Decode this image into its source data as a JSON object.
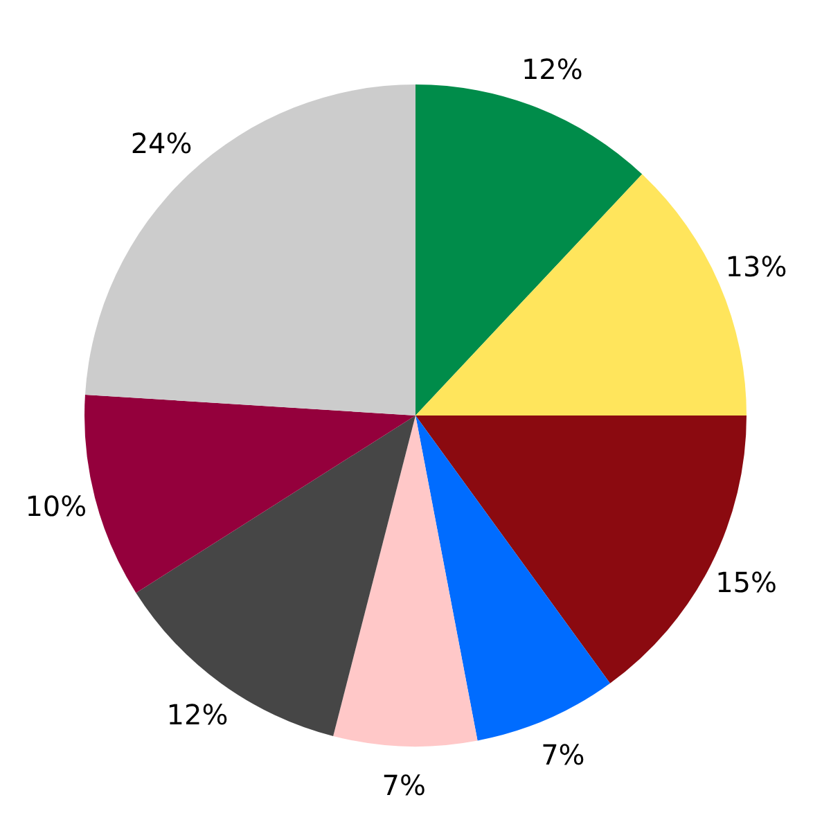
{
  "chart_data": {
    "type": "pie",
    "categories": [
      null,
      null,
      null,
      null,
      null,
      null,
      null,
      null
    ],
    "values": [
      12,
      13,
      15,
      7,
      7,
      12,
      10,
      24
    ],
    "colors": [
      "#008c4a",
      "#ffe55c",
      "#8b0a10",
      "#006cff",
      "#ffc8c8",
      "#464646",
      "#94003c",
      "#cccccc"
    ],
    "value_labels": [
      "12%",
      "13%",
      "15%",
      "7%",
      "7%",
      "12%",
      "10%",
      "24%"
    ]
  }
}
